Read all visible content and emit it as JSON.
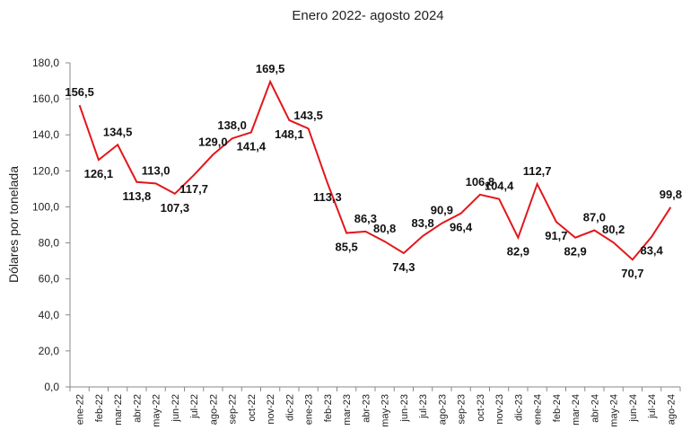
{
  "chart_data": {
    "type": "line",
    "title": "Enero 2022- agosto 2024",
    "y_label": "Dólares por tonelada",
    "categories": [
      "ene-22",
      "feb-22",
      "mar-22",
      "abr-22",
      "may-22",
      "jun-22",
      "jul-22",
      "ago-22",
      "sep-22",
      "oct-22",
      "nov-22",
      "dic-22",
      "ene-23",
      "feb-23",
      "mar-23",
      "abr-23",
      "may-23",
      "jun-23",
      "jul-23",
      "ago-23",
      "sep-23",
      "oct-23",
      "nov-23",
      "dic-23",
      "ene-24",
      "feb-24",
      "mar-24",
      "abr-24",
      "may-24",
      "jun-24",
      "jul-24",
      "ago-24"
    ],
    "series": [
      {
        "name": "Dólares por tonelada",
        "color": "#e3161b",
        "values": [
          156.5,
          126.1,
          134.5,
          113.8,
          113.0,
          107.3,
          117.7,
          129.0,
          138.0,
          141.4,
          169.5,
          148.1,
          143.5,
          113.3,
          85.5,
          86.3,
          80.8,
          74.3,
          83.8,
          90.9,
          96.4,
          106.8,
          104.4,
          82.9,
          112.7,
          91.7,
          82.9,
          87.0,
          80.2,
          70.7,
          83.4,
          99.8
        ],
        "value_labels": [
          "156,5",
          "126,1",
          "134,5",
          "113,8",
          "113,0",
          "107,3",
          "117,7",
          "129,0",
          "138,0",
          "141,4",
          "169,5",
          "148,1",
          "143,5",
          "113,3",
          "85,5",
          "86,3",
          "80,8",
          "74,3",
          "83,8",
          "90,9",
          "96,4",
          "106,8",
          "104,4",
          "82,9",
          "112,7",
          "91,7",
          "82,9",
          "87,0",
          "80,2",
          "70,7",
          "83,4",
          "99,8"
        ]
      }
    ],
    "ylim": [
      0,
      180
    ],
    "yticks": [
      {
        "value": 0,
        "label": "0,0"
      },
      {
        "value": 20,
        "label": "20,0"
      },
      {
        "value": 40,
        "label": "40,0"
      },
      {
        "value": 60,
        "label": "60,0"
      },
      {
        "value": 80,
        "label": "80,0"
      },
      {
        "value": 100,
        "label": "100,0"
      },
      {
        "value": 120,
        "label": "120,0"
      },
      {
        "value": 140,
        "label": "140,0"
      },
      {
        "value": 160,
        "label": "160,0"
      },
      {
        "value": 180,
        "label": "180,0"
      }
    ],
    "grid": false
  }
}
